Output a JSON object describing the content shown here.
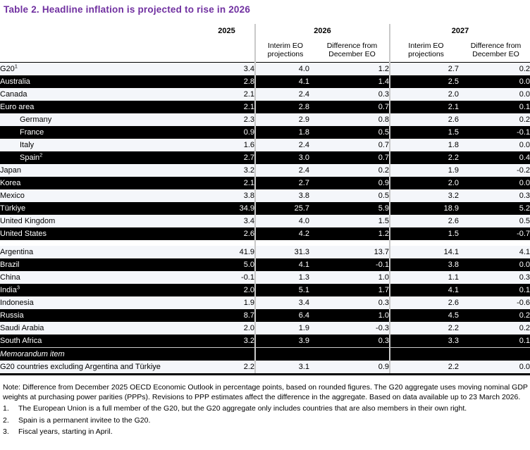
{
  "title": "Table 2. Headline inflation is projected to rise in 2026",
  "colors": {
    "title_purple": "#7030a0",
    "dark_row_bg": "#000000",
    "dark_row_text": "#ffffff",
    "light_row_bg": "#f4f6fa",
    "column_separator": "#c9c9c9"
  },
  "table": {
    "header": {
      "y2025": "2025",
      "y2026": "2026",
      "y2027": "2027",
      "interim_l1": "Interim EO",
      "interim_l2": "projections",
      "diff_l1": "Difference from",
      "diff_l2": "December EO"
    },
    "sections": [
      {
        "name": "g20-members",
        "rows": [
          {
            "label": "G20",
            "sup": "1",
            "indent": false,
            "dark": false,
            "values": [
              "3.4",
              "4.0",
              "1.2",
              "2.7",
              "0.2"
            ]
          },
          {
            "label": "Australia",
            "sup": null,
            "indent": false,
            "dark": true,
            "values": [
              "2.8",
              "4.1",
              "1.4",
              "2.5",
              "0.0"
            ]
          },
          {
            "label": "Canada",
            "sup": null,
            "indent": false,
            "dark": false,
            "values": [
              "2.1",
              "2.4",
              "0.3",
              "2.0",
              "0.0"
            ]
          },
          {
            "label": "Euro area",
            "sup": null,
            "indent": false,
            "dark": true,
            "values": [
              "2.1",
              "2.8",
              "0.7",
              "2.1",
              "0.1"
            ]
          },
          {
            "label": "Germany",
            "sup": null,
            "indent": true,
            "dark": false,
            "values": [
              "2.3",
              "2.9",
              "0.8",
              "2.6",
              "0.2"
            ]
          },
          {
            "label": "France",
            "sup": null,
            "indent": true,
            "dark": true,
            "values": [
              "0.9",
              "1.8",
              "0.5",
              "1.5",
              "-0.1"
            ]
          },
          {
            "label": "Italy",
            "sup": null,
            "indent": true,
            "dark": false,
            "values": [
              "1.6",
              "2.4",
              "0.7",
              "1.8",
              "0.0"
            ]
          },
          {
            "label": "Spain",
            "sup": "2",
            "indent": true,
            "dark": true,
            "values": [
              "2.7",
              "3.0",
              "0.7",
              "2.2",
              "0.4"
            ]
          },
          {
            "label": "Japan",
            "sup": null,
            "indent": false,
            "dark": false,
            "values": [
              "3.2",
              "2.4",
              "0.2",
              "1.9",
              "-0.2"
            ]
          },
          {
            "label": "Korea",
            "sup": null,
            "indent": false,
            "dark": true,
            "values": [
              "2.1",
              "2.7",
              "0.9",
              "2.0",
              "0.0"
            ]
          },
          {
            "label": "Mexico",
            "sup": null,
            "indent": false,
            "dark": false,
            "values": [
              "3.8",
              "3.8",
              "0.5",
              "3.2",
              "0.3"
            ]
          },
          {
            "label": "Türkiye",
            "sup": null,
            "indent": false,
            "dark": true,
            "values": [
              "34.9",
              "25.7",
              "5.9",
              "18.9",
              "5.2"
            ]
          },
          {
            "label": "United Kingdom",
            "sup": null,
            "indent": false,
            "dark": false,
            "values": [
              "3.4",
              "4.0",
              "1.5",
              "2.6",
              "0.5"
            ]
          },
          {
            "label": "United States",
            "sup": null,
            "indent": false,
            "dark": true,
            "values": [
              "2.6",
              "4.2",
              "1.2",
              "1.5",
              "-0.7"
            ]
          }
        ]
      },
      {
        "name": "other-g20",
        "rows": [
          {
            "label": "Argentina",
            "sup": null,
            "indent": false,
            "dark": false,
            "values": [
              "41.9",
              "31.3",
              "13.7",
              "14.1",
              "4.1"
            ]
          },
          {
            "label": "Brazil",
            "sup": null,
            "indent": false,
            "dark": true,
            "values": [
              "5.0",
              "4.1",
              "-0.1",
              "3.8",
              "0.0"
            ]
          },
          {
            "label": "China",
            "sup": null,
            "indent": false,
            "dark": false,
            "values": [
              "-0.1",
              "1.3",
              "1.0",
              "1.1",
              "0.3"
            ]
          },
          {
            "label": "India",
            "sup": "3",
            "indent": false,
            "dark": true,
            "values": [
              "2.0",
              "5.1",
              "1.7",
              "4.1",
              "0.1"
            ]
          },
          {
            "label": "Indonesia",
            "sup": null,
            "indent": false,
            "dark": false,
            "values": [
              "1.9",
              "3.4",
              "0.3",
              "2.6",
              "-0.6"
            ]
          },
          {
            "label": "Russia",
            "sup": null,
            "indent": false,
            "dark": true,
            "values": [
              "8.7",
              "6.4",
              "1.0",
              "4.5",
              "0.2"
            ]
          },
          {
            "label": "Saudi Arabia",
            "sup": null,
            "indent": false,
            "dark": false,
            "values": [
              "2.0",
              "1.9",
              "-0.3",
              "2.2",
              "0.2"
            ]
          },
          {
            "label": "South Africa",
            "sup": null,
            "indent": false,
            "dark": true,
            "divider": true,
            "values": [
              "3.2",
              "3.9",
              "0.3",
              "3.3",
              "0.1"
            ]
          }
        ]
      }
    ],
    "memorandum": {
      "label": "Memorandum item",
      "row": {
        "label": "G20 countries excluding Argentina and Türkiye",
        "sup": null,
        "indent": false,
        "dark": false,
        "values": [
          "2.2",
          "3.1",
          "0.9",
          "2.2",
          "0.0"
        ]
      }
    }
  },
  "note": "Note: Difference from December 2025 OECD Economic Outlook in percentage points, based on rounded figures. The G20 aggregate uses moving nominal GDP weights at purchasing power parities (PPPs). Revisions to PPP estimates affect the difference in the aggregate. Based on data available up to 23 March 2026.",
  "footnotes": [
    {
      "num": "1.",
      "text": "The European Union is a full member of the G20, but the G20 aggregate only includes countries that are also members in their own right."
    },
    {
      "num": "2.",
      "text": "Spain is a permanent invitee to the G20."
    },
    {
      "num": "3.",
      "text": "Fiscal years, starting in April."
    }
  ]
}
